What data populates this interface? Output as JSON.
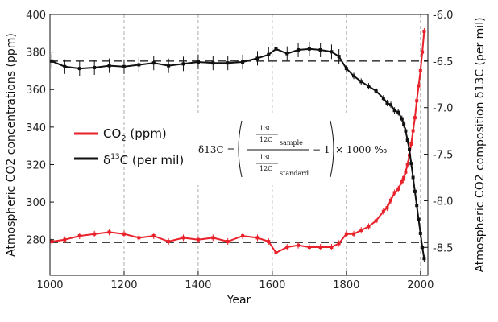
{
  "chart_data": {
    "type": "line",
    "xlabel": "Year",
    "ylabel_left": "Atmospheric CO2 concentrations (ppm)",
    "ylabel_right": "Atmospheric CO2 composition δ13C (per mil)",
    "xlim": [
      1000,
      2020
    ],
    "ylim_left": [
      261,
      400
    ],
    "ylim_right": [
      -8.8,
      -6.0
    ],
    "x_ticks": [
      1000,
      1200,
      1400,
      1600,
      1800,
      2000
    ],
    "y_ticks_left": [
      280,
      300,
      320,
      340,
      360,
      380,
      400
    ],
    "y_ticks_right": [
      -6.0,
      -6.5,
      -7.0,
      -7.5,
      -8.0,
      -8.5
    ],
    "x_tick_labels": [
      "1000",
      "1200",
      "1400",
      "1600",
      "1800",
      "2000"
    ],
    "y_tick_labels_left": [
      "280",
      "300",
      "320",
      "340",
      "360",
      "380",
      "400"
    ],
    "y_tick_labels_right": [
      "-6.0",
      "-6.5",
      "-7.0",
      "-7.5",
      "-8.0",
      "-8.5"
    ],
    "reference_lines": [
      {
        "axis": "left",
        "value": 278.5,
        "style": "dashed"
      },
      {
        "axis": "right",
        "value": -6.5,
        "style": "dashed"
      }
    ],
    "grid": "vertical dashed at x ticks",
    "legend": {
      "position": "center-left"
    },
    "series": [
      {
        "name": "CO2 (ppm)",
        "axis": "left",
        "color": "#e8212a",
        "x": [
          1005,
          1040,
          1080,
          1120,
          1160,
          1200,
          1240,
          1280,
          1320,
          1360,
          1400,
          1440,
          1480,
          1520,
          1560,
          1590,
          1610,
          1640,
          1670,
          1700,
          1730,
          1760,
          1780,
          1800,
          1820,
          1840,
          1860,
          1880,
          1900,
          1910,
          1920,
          1930,
          1940,
          1950,
          1955,
          1960,
          1965,
          1970,
          1975,
          1980,
          1985,
          1990,
          1995,
          2000,
          2005,
          2010
        ],
        "y": [
          279,
          280,
          282,
          283,
          284,
          283,
          281,
          282,
          279,
          281,
          280,
          281,
          279,
          282,
          281,
          279,
          273,
          276,
          277,
          276,
          276,
          276,
          278,
          283,
          283,
          285,
          287,
          290,
          295,
          297,
          301,
          305,
          307,
          311,
          313,
          316,
          320,
          325,
          331,
          338,
          345,
          354,
          362,
          370,
          380,
          391
        ]
      },
      {
        "name": "δ13C (per mil)",
        "axis": "right",
        "color": "#111111",
        "x": [
          1005,
          1040,
          1080,
          1120,
          1160,
          1200,
          1240,
          1280,
          1320,
          1360,
          1400,
          1440,
          1480,
          1520,
          1560,
          1590,
          1610,
          1640,
          1670,
          1700,
          1730,
          1760,
          1780,
          1800,
          1820,
          1840,
          1860,
          1880,
          1900,
          1910,
          1920,
          1930,
          1940,
          1950,
          1955,
          1960,
          1965,
          1970,
          1975,
          1980,
          1985,
          1990,
          1995,
          2000,
          2005,
          2010
        ],
        "y": [
          -6.5,
          -6.56,
          -6.58,
          -6.57,
          -6.55,
          -6.56,
          -6.54,
          -6.52,
          -6.55,
          -6.53,
          -6.51,
          -6.52,
          -6.52,
          -6.51,
          -6.47,
          -6.43,
          -6.37,
          -6.42,
          -6.38,
          -6.37,
          -6.38,
          -6.4,
          -6.45,
          -6.58,
          -6.66,
          -6.72,
          -6.77,
          -6.82,
          -6.9,
          -6.95,
          -6.97,
          -7.03,
          -7.05,
          -7.12,
          -7.18,
          -7.25,
          -7.35,
          -7.45,
          -7.6,
          -7.75,
          -7.9,
          -8.05,
          -8.2,
          -8.35,
          -8.5,
          -8.62
        ]
      }
    ],
    "annotations": {
      "equation": {
        "lhs": "δ13C =",
        "numerator_top": "13C",
        "numerator_bottom": "12C",
        "sample_sub": "sample",
        "standard_sub": "standard",
        "minus_one": "− 1",
        "multiplier": "× 1000 ‰"
      }
    }
  },
  "legend_items": [
    {
      "label": "CO",
      "sub": "2",
      "suffix": " (ppm)",
      "color": "#e8212a"
    },
    {
      "label": "δ",
      "sup": "13",
      "suffix": "C (per mil)",
      "color": "#111111"
    }
  ]
}
